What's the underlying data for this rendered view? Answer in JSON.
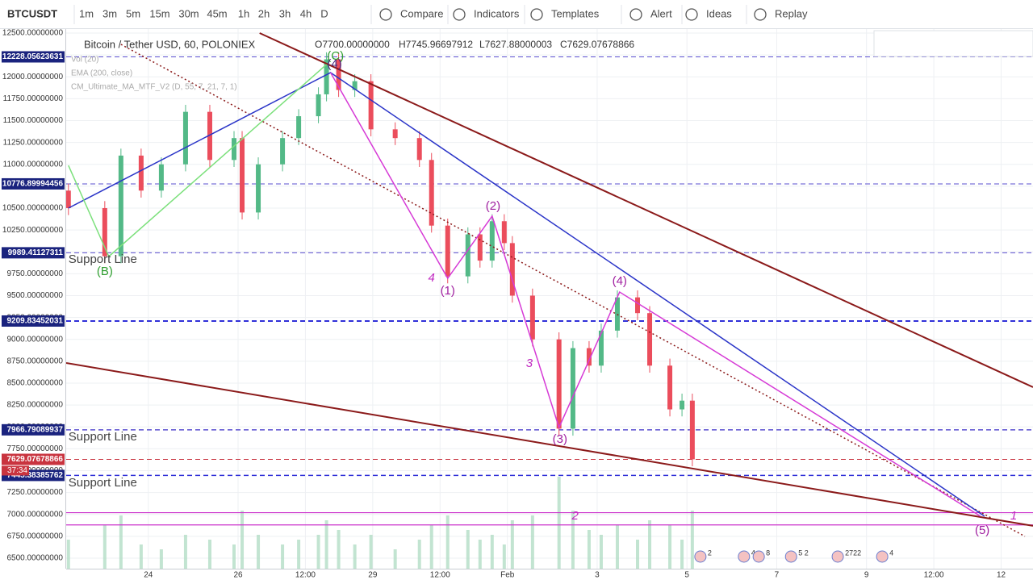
{
  "toolbar": {
    "symbol": "BTCUSDT",
    "intervals": [
      "1m",
      "3m",
      "5m",
      "15m",
      "30m",
      "45m",
      "1h",
      "2h",
      "3h",
      "4h",
      "D"
    ],
    "active_interval": "1h",
    "buttons": [
      "Compare",
      "Indicators",
      "Templates",
      "Alert",
      "Ideas",
      "Replay"
    ]
  },
  "chart_data": {
    "type": "candlestick",
    "title": "Bitcoin / Tether USD, 60, POLONIEX",
    "ohlc_labels": [
      "O7700.00000000",
      "H7745.96697912",
      "L7627.88000003",
      "C7629.07678866"
    ],
    "indicators": [
      "Vol (20)",
      "EMA (200, close)",
      "CM_Ultimate_MA_MTF_V2 (D, 55, 7, 21, 7, 1)"
    ],
    "xlim": [
      22.17,
      43.71
    ],
    "xticks": [
      {
        "value": 24,
        "label": "24"
      },
      {
        "value": 26,
        "label": "26"
      },
      {
        "value": 27.5,
        "label": "12:00"
      },
      {
        "value": 29,
        "label": "29"
      },
      {
        "value": 30.5,
        "label": "12:00"
      },
      {
        "value": 32,
        "label": "Feb"
      },
      {
        "value": 34,
        "label": "3"
      },
      {
        "value": 36,
        "label": "5"
      },
      {
        "value": 38,
        "label": "7"
      },
      {
        "value": 40,
        "label": "9"
      },
      {
        "value": 41.5,
        "label": "12:00"
      },
      {
        "value": 43,
        "label": "12"
      }
    ],
    "ylim": [
      6380,
      12546
    ],
    "yticks": [
      {
        "value": 6500,
        "label": "6500.00000000"
      },
      {
        "value": 6750,
        "label": "6750.00000000"
      },
      {
        "value": 7000,
        "label": "7000.00000000"
      },
      {
        "value": 7250,
        "label": "7250.00000000"
      },
      {
        "value": 7500,
        "label": "7500.00000000"
      },
      {
        "value": 7750,
        "label": "7750.00000000"
      },
      {
        "value": 8000,
        "label": "8000.00000000"
      },
      {
        "value": 8250,
        "label": "8250.00000000"
      },
      {
        "value": 8500,
        "label": "8500.00000000"
      },
      {
        "value": 8750,
        "label": "8750.00000000"
      },
      {
        "value": 9000,
        "label": "9000.00000000"
      },
      {
        "value": 9250,
        "label": "9250.00000000"
      },
      {
        "value": 9500,
        "label": "9500.00000000"
      },
      {
        "value": 9750,
        "label": "9750.00000000"
      },
      {
        "value": 10000,
        "label": "10000.00000000"
      },
      {
        "value": 10250,
        "label": "10250.00000000"
      },
      {
        "value": 10500,
        "label": "10500.00000000"
      },
      {
        "value": 10750,
        "label": "10750.00000000"
      },
      {
        "value": 11000,
        "label": "11000.00000000"
      },
      {
        "value": 11250,
        "label": "11250.00000000"
      },
      {
        "value": 11500,
        "label": "11500.00000000"
      },
      {
        "value": 11750,
        "label": "11750.00000000"
      },
      {
        "value": 12000,
        "label": "12000.00000000"
      },
      {
        "value": 12250,
        "label": "12250.00000000"
      },
      {
        "value": 12500,
        "label": "12500.00000000"
      }
    ],
    "grid": true,
    "up_color": "#53b987",
    "down_color": "#eb4d5c",
    "candles": {
      "x": [
        22.22,
        23.03,
        23.39,
        23.84,
        24.29,
        24.83,
        25.37,
        25.91,
        26.09,
        26.45,
        26.99,
        27.35,
        27.79,
        27.97,
        28.24,
        28.6,
        28.96,
        29.5,
        30.04,
        30.31,
        30.67,
        31.12,
        31.39,
        31.66,
        31.93,
        32.11,
        32.56,
        33.15,
        33.46,
        33.82,
        34.09,
        34.45,
        34.9,
        35.17,
        35.62,
        35.89,
        36.12
      ],
      "open": [
        10700,
        10500,
        9950,
        11100,
        10700,
        11000,
        11600,
        11050,
        11300,
        10450,
        11000,
        11300,
        11550,
        11800,
        12200,
        11850,
        11950,
        11400,
        11300,
        11050,
        10300,
        9720,
        10200,
        9900,
        10350,
        10100,
        9500,
        9000,
        7980,
        8900,
        8700,
        9100,
        9480,
        9300,
        8700,
        8200,
        8300
      ],
      "high": [
        10780,
        10580,
        11180,
        11180,
        11080,
        11680,
        11680,
        11380,
        11380,
        11080,
        11380,
        11630,
        11880,
        12280,
        12280,
        12030,
        12030,
        11480,
        11380,
        11130,
        10380,
        10280,
        10280,
        10430,
        10430,
        10180,
        9580,
        9080,
        8980,
        8980,
        9180,
        9560,
        9560,
        9380,
        8780,
        8380,
        8380
      ],
      "low": [
        10420,
        9870,
        9870,
        10620,
        10620,
        10920,
        10970,
        10970,
        10370,
        10370,
        10920,
        11220,
        11470,
        11720,
        11770,
        11770,
        11320,
        11220,
        10970,
        10220,
        9640,
        9640,
        9820,
        9820,
        10020,
        9420,
        8920,
        7900,
        7900,
        8620,
        8620,
        9020,
        9220,
        8620,
        8120,
        8120,
        7550
      ],
      "close": [
        10500,
        9950,
        11100,
        10700,
        11000,
        11600,
        11050,
        11300,
        10450,
        11000,
        11300,
        11550,
        11800,
        12200,
        11850,
        11950,
        11400,
        11300,
        11050,
        10300,
        9720,
        10200,
        9900,
        10350,
        10100,
        9500,
        9000,
        7980,
        8900,
        8700,
        9100,
        9480,
        9300,
        8700,
        8200,
        8300,
        7630
      ]
    },
    "volume": {
      "values": [
        30,
        45,
        55,
        25,
        20,
        35,
        30,
        25,
        60,
        35,
        25,
        30,
        35,
        50,
        40,
        25,
        35,
        20,
        30,
        45,
        55,
        40,
        30,
        35,
        25,
        50,
        55,
        95,
        60,
        40,
        35,
        45,
        30,
        50,
        45,
        30,
        60
      ],
      "ylim": [
        0,
        100
      ],
      "color": "#a8d8bd"
    },
    "levels": [
      {
        "value": 12228.05623631,
        "color": "#5a4fcf",
        "width": 1,
        "label_bg": "#1a237e"
      },
      {
        "value": 10776.89994456,
        "color": "#5a4fcf",
        "width": 1,
        "label_bg": "#1a237e"
      },
      {
        "value": 9989.41127311,
        "color": "#5a4fcf",
        "width": 1,
        "label_bg": "#1a237e"
      },
      {
        "value": 9209.83452031,
        "color": "#3030d8",
        "width": 2,
        "label_bg": "#1a237e"
      },
      {
        "value": 7966.79089937,
        "color": "#5a4fcf",
        "width": 1.5,
        "label_bg": "#1a237e"
      },
      {
        "value": 7629.07678866,
        "color": "#c9343f",
        "width": 1,
        "label_bg": "#c9343f"
      },
      {
        "value": 7445.38385762,
        "color": "#3030d8",
        "width": 1.5,
        "label_bg": "#1a237e"
      }
    ],
    "countdown": "37:34",
    "hlines": [
      {
        "value": 7020,
        "color": "#cc33cc"
      },
      {
        "value": 6880,
        "color": "#cc33cc"
      }
    ],
    "drawings": [
      {
        "color": "#8b1a1a",
        "width": 2,
        "dash": "",
        "x": [
          26.48,
          43.71
        ],
        "y": [
          12500,
          8454
        ]
      },
      {
        "color": "#8b1a1a",
        "width": 2,
        "dash": "",
        "x": [
          22.17,
          43.71
        ],
        "y": [
          8730,
          6869
        ]
      },
      {
        "color": "#8b1a1a",
        "width": 1.5,
        "dash": "2 3",
        "x": [
          23.39,
          43.53
        ],
        "y": [
          12371,
          6749
        ]
      },
      {
        "color": "#2b35c8",
        "width": 1.5,
        "dash": "",
        "x": [
          22.22,
          28.06,
          42.63
        ],
        "y": [
          10500,
          12048,
          6979
        ]
      },
      {
        "color": "#7be07b",
        "width": 1.5,
        "dash": "",
        "x": [
          22.22,
          23.12,
          27.97
        ],
        "y": [
          10988,
          9947,
          12141
        ]
      },
      {
        "color": "#d63ad6",
        "width": 1.5,
        "dash": "",
        "x": [
          28.06,
          30.67,
          31.66,
          33.15,
          34.5,
          42.54
        ],
        "y": [
          12048,
          9698,
          10408,
          7993,
          9541,
          6979
        ]
      }
    ],
    "annotations": [
      {
        "text": "(C)",
        "x": 28.17,
        "y": 12233,
        "color": "#2f9e2f",
        "size": 15,
        "italic": false
      },
      {
        "text": "(4)",
        "x": 28.15,
        "y": 12141,
        "color": "#4a2a80",
        "size": 15,
        "italic": false
      },
      {
        "text": "(B)",
        "x": 23.03,
        "y": 9772,
        "color": "#2f9e2f",
        "size": 15,
        "italic": false
      },
      {
        "text": "(1)",
        "x": 30.67,
        "y": 9551,
        "color": "#a020a0",
        "size": 15,
        "italic": false
      },
      {
        "text": "(2)",
        "x": 31.68,
        "y": 10518,
        "color": "#a020a0",
        "size": 15,
        "italic": false
      },
      {
        "text": "(3)",
        "x": 33.17,
        "y": 7855,
        "color": "#a020a0",
        "size": 15,
        "italic": false
      },
      {
        "text": "(4)",
        "x": 34.5,
        "y": 9661,
        "color": "#a020a0",
        "size": 15,
        "italic": false
      },
      {
        "text": "(5)",
        "x": 42.58,
        "y": 6813,
        "color": "#a020a0",
        "size": 15,
        "italic": false
      },
      {
        "text": "4",
        "x": 30.31,
        "y": 9698,
        "color": "#c026c0",
        "size": 15,
        "italic": true
      },
      {
        "text": "3",
        "x": 32.49,
        "y": 8721,
        "color": "#c026c0",
        "size": 15,
        "italic": true
      },
      {
        "text": "2",
        "x": 33.51,
        "y": 6979,
        "color": "#c026c0",
        "size": 15,
        "italic": true
      },
      {
        "text": "1",
        "x": 43.28,
        "y": 6979,
        "color": "#c026c0",
        "size": 15,
        "italic": true
      }
    ],
    "notes": [
      {
        "text": "Support Line",
        "x": 22.22,
        "y": 9910
      },
      {
        "text": "Support Line",
        "x": 22.22,
        "y": 7882
      },
      {
        "text": "Support Line",
        "x": 22.22,
        "y": 7357
      }
    ],
    "events": [
      {
        "x": 36.3,
        "label": "2"
      },
      {
        "x": 37.27,
        "label": "4"
      },
      {
        "x": 37.6,
        "label": "8"
      },
      {
        "x": 38.32,
        "label": "5 2"
      },
      {
        "x": 39.36,
        "label": "2722"
      },
      {
        "x": 40.35,
        "label": "4"
      }
    ]
  }
}
